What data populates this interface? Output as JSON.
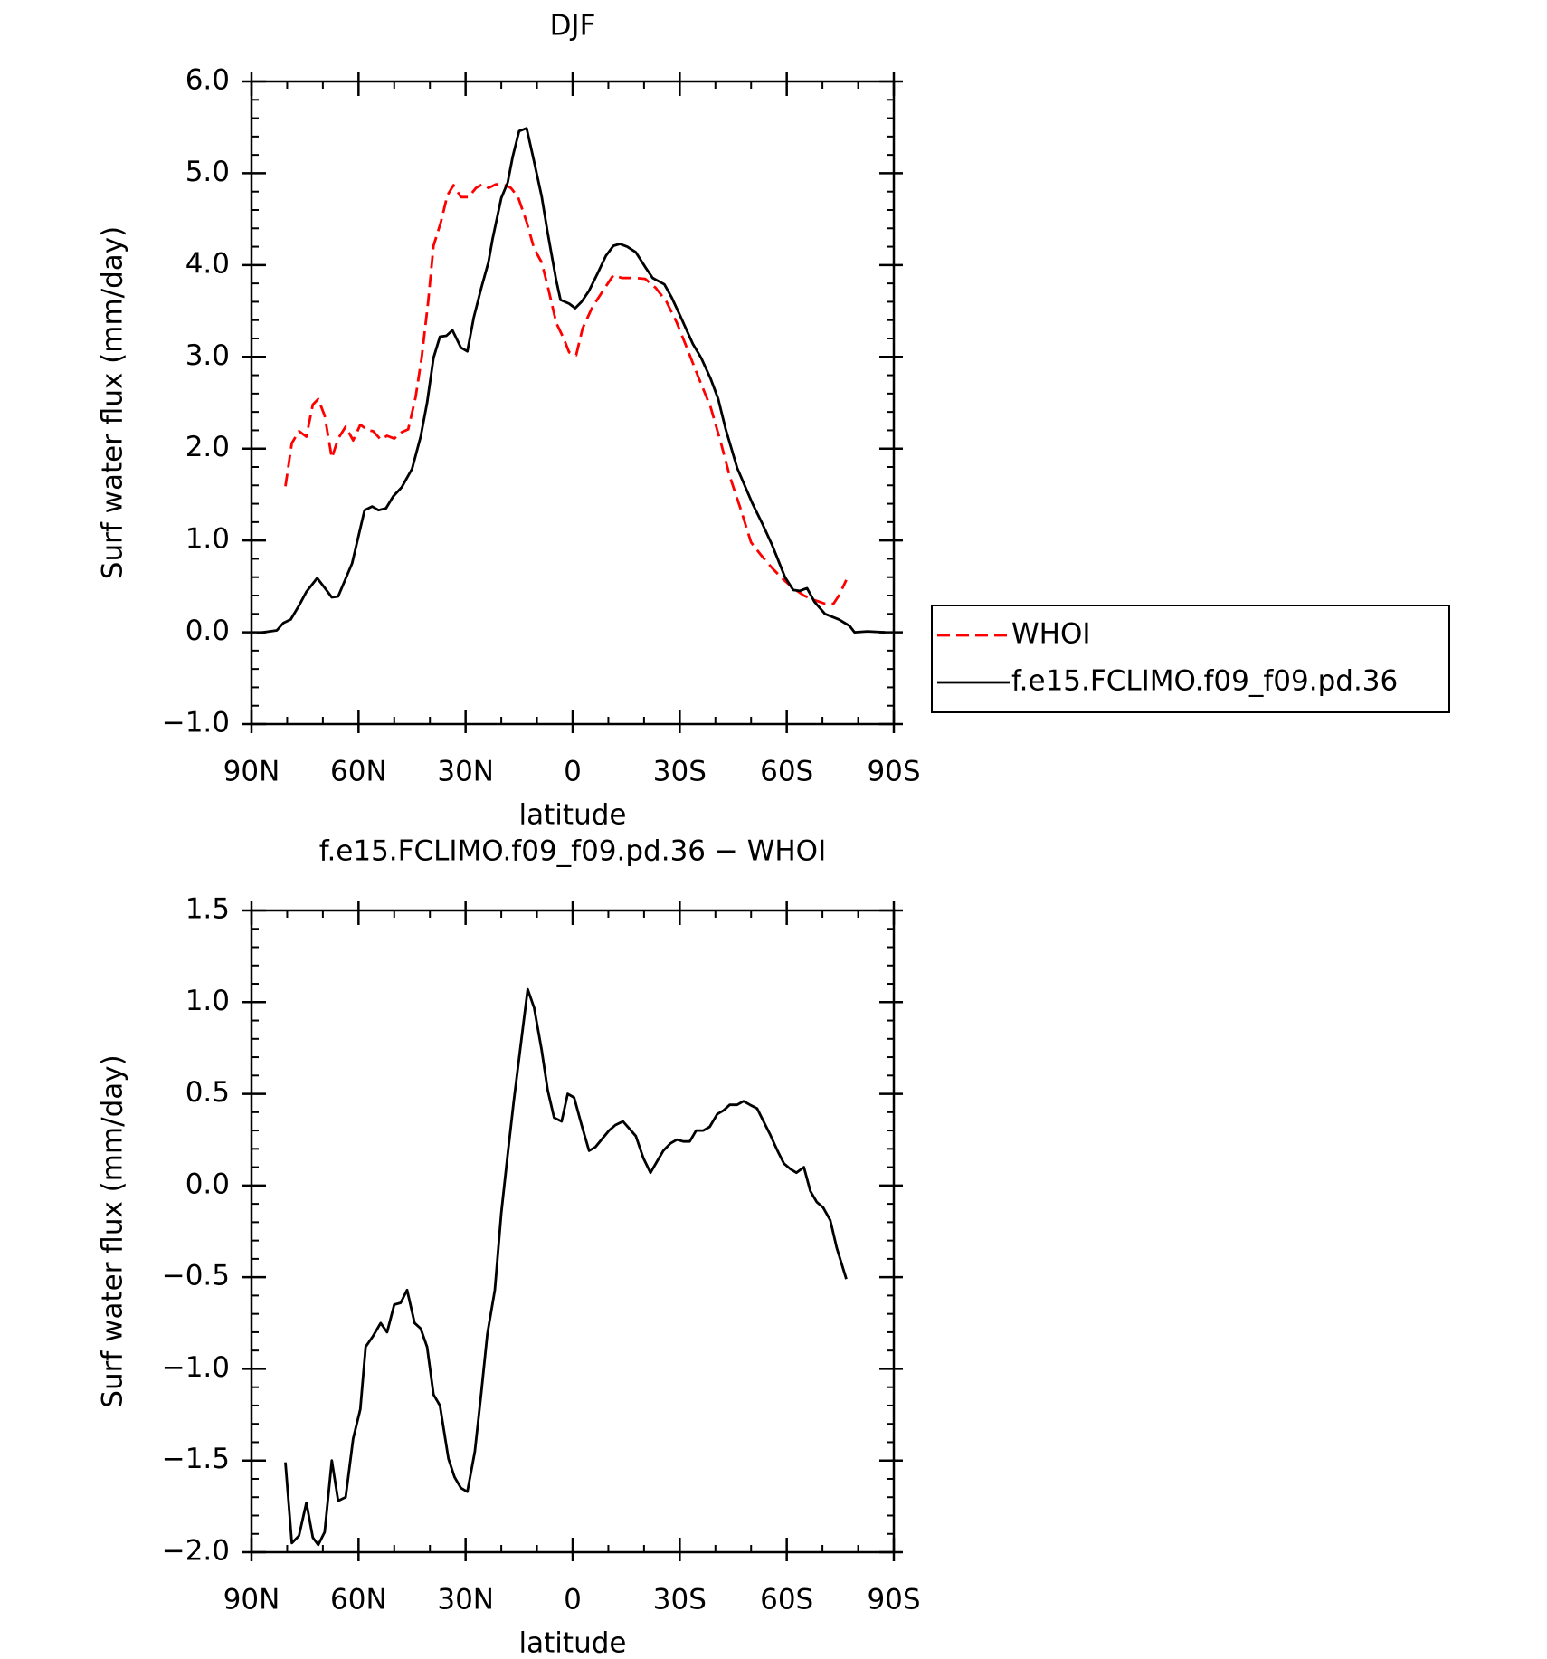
{
  "chart_data": [
    {
      "type": "line",
      "title": "DJF",
      "xlabel": "latitude",
      "ylabel": "Surf water flux (mm/day)",
      "xlim": [
        90,
        -90
      ],
      "ylim": [
        -1,
        6
      ],
      "xticks": [
        {
          "value": 90,
          "label": "90N"
        },
        {
          "value": 60,
          "label": "60N"
        },
        {
          "value": 30,
          "label": "30N"
        },
        0,
        {
          "value": -30,
          "label": "30S"
        },
        {
          "value": -60,
          "label": "60S"
        },
        {
          "value": -90,
          "label": "90S"
        }
      ],
      "yticks": [
        {
          "value": 6,
          "label": "6.0"
        },
        {
          "value": 5,
          "label": "5.0"
        },
        {
          "value": 4,
          "label": "4.0"
        },
        {
          "value": 3,
          "label": "3.0"
        },
        {
          "value": 2,
          "label": "2.0"
        },
        {
          "value": 1,
          "label": "1.0"
        },
        {
          "value": 0,
          "label": "0.0"
        },
        {
          "value": -1,
          "label": "−1.0"
        }
      ],
      "legend": "right",
      "series": [
        {
          "name": "WHOI",
          "color": "#ff0000",
          "style": "dashed",
          "x": [
            80.5,
            78.7,
            76.7,
            74.6,
            72.8,
            71.3,
            69.5,
            67.5,
            65.7,
            63.6,
            61.5,
            59.5,
            57.4,
            55.9,
            53.8,
            52,
            50,
            47.9,
            46.1,
            44,
            42.3,
            40.5,
            39,
            36.9,
            35.1,
            33.4,
            31.3,
            29.2,
            27.1,
            25.3,
            23.6,
            21.5,
            19.4,
            17.3,
            15.3,
            12.9,
            10.8,
            8.7,
            7,
            4.6,
            2.5,
            1,
            -1,
            -2.8,
            -5.5,
            -8.5,
            -11.4,
            -13.8,
            -17.4,
            -20.3,
            -23.3,
            -26.3,
            -29.2,
            -32.2,
            -35.1,
            -38.7,
            -41.7,
            -44,
            -47,
            -50,
            -53,
            -55.9,
            -58.9,
            -61.8,
            -64.8,
            -67.8,
            -70.7,
            -73.1,
            -74.6,
            -76.7
          ],
          "values": [
            1.59,
            2.06,
            2.19,
            2.13,
            2.48,
            2.54,
            2.36,
            1.9,
            2.11,
            2.24,
            2.09,
            2.26,
            2.2,
            2.19,
            2.1,
            2.14,
            2.11,
            2.18,
            2.21,
            2.56,
            2.99,
            3.6,
            4.21,
            4.47,
            4.76,
            4.87,
            4.74,
            4.74,
            4.84,
            4.88,
            4.84,
            4.88,
            4.88,
            4.84,
            4.74,
            4.47,
            4.18,
            4.03,
            3.77,
            3.37,
            3.2,
            3.05,
            3.02,
            3.31,
            3.54,
            3.72,
            3.89,
            3.86,
            3.86,
            3.85,
            3.75,
            3.6,
            3.37,
            3.08,
            2.79,
            2.45,
            2.04,
            1.7,
            1.35,
            0.98,
            0.83,
            0.7,
            0.58,
            0.48,
            0.4,
            0.35,
            0.31,
            0.31,
            0.4,
            0.57
          ]
        },
        {
          "name": "f.e15.FCLIMO.f09_f09.pd.36",
          "color": "#000000",
          "style": "solid",
          "x": [
            88.5,
            82.9,
            81.1,
            79,
            76.7,
            74.6,
            71.6,
            69.2,
            67.5,
            65.7,
            61.8,
            58.3,
            56.2,
            54.4,
            52.3,
            50.3,
            47.9,
            45,
            42.6,
            40.8,
            39,
            37.2,
            35.4,
            33.7,
            31.3,
            29.5,
            27.7,
            25.6,
            23.6,
            22.4,
            20,
            18.2,
            16.8,
            15,
            12.9,
            11.1,
            8.7,
            7,
            4.6,
            3.4,
            1,
            -0.7,
            -2.5,
            -4.6,
            -7,
            -9.3,
            -11.4,
            -13.2,
            -15.3,
            -17.7,
            -20.3,
            -22.4,
            -25.7,
            -27.7,
            -30.1,
            -33.7,
            -36,
            -38.7,
            -40.8,
            -42.9,
            -46.1,
            -50.3,
            -53.2,
            -55.9,
            -59.5,
            -61.8,
            -63.6,
            -65.7,
            -67.8,
            -70.7,
            -74.6,
            -77.6,
            -79,
            -82.6,
            -87.6
          ],
          "values": [
            -0.01,
            0.02,
            0.1,
            0.14,
            0.29,
            0.44,
            0.59,
            0.47,
            0.38,
            0.39,
            0.75,
            1.33,
            1.37,
            1.33,
            1.35,
            1.48,
            1.58,
            1.78,
            2.13,
            2.5,
            2.99,
            3.22,
            3.23,
            3.29,
            3.1,
            3.06,
            3.43,
            3.75,
            4.03,
            4.29,
            4.73,
            4.9,
            5.18,
            5.46,
            5.49,
            5.18,
            4.75,
            4.35,
            3.83,
            3.62,
            3.58,
            3.53,
            3.6,
            3.72,
            3.91,
            4.1,
            4.21,
            4.23,
            4.2,
            4.14,
            3.98,
            3.86,
            3.79,
            3.65,
            3.45,
            3.14,
            2.99,
            2.76,
            2.54,
            2.21,
            1.79,
            1.41,
            1.18,
            0.95,
            0.6,
            0.46,
            0.45,
            0.48,
            0.33,
            0.2,
            0.14,
            0.07,
            0,
            0.01,
            0
          ]
        }
      ]
    },
    {
      "type": "line",
      "title": "f.e15.FCLIMO.f09_f09.pd.36 − WHOI",
      "xlabel": "latitude",
      "ylabel": "Surf water flux (mm/day)",
      "xlim": [
        90,
        -90
      ],
      "ylim": [
        -2,
        1.5
      ],
      "xticks": [
        {
          "value": 90,
          "label": "90N"
        },
        {
          "value": 60,
          "label": "60N"
        },
        {
          "value": 30,
          "label": "30N"
        },
        0,
        {
          "value": -30,
          "label": "30S"
        },
        {
          "value": -60,
          "label": "60S"
        },
        {
          "value": -90,
          "label": "90S"
        }
      ],
      "yticks": [
        1.5,
        {
          "value": 1,
          "label": "1.0"
        },
        0.5,
        {
          "value": 0,
          "label": "0.0"
        },
        {
          "value": -0.5,
          "label": "−0.5"
        },
        {
          "value": -1,
          "label": "−1.0"
        },
        {
          "value": -1.5,
          "label": "−1.5"
        },
        {
          "value": -2,
          "label": "−2.0"
        }
      ],
      "series": [
        {
          "color": "#000000",
          "style": "solid",
          "x": [
            80.5,
            78.7,
            76.7,
            74.6,
            72.8,
            71.3,
            69.5,
            67.5,
            65.7,
            63.6,
            61.5,
            59.5,
            58,
            55.9,
            53.8,
            52,
            50,
            48.2,
            46.4,
            44.3,
            42.6,
            40.8,
            39,
            37.2,
            34.8,
            33.1,
            31.3,
            29.5,
            27.4,
            25.6,
            23.9,
            21.8,
            20,
            18.2,
            16.5,
            14.4,
            12.6,
            10.8,
            8.7,
            7,
            5.2,
            3.1,
            1.4,
            -0.4,
            -2.5,
            -4.6,
            -6.4,
            -8.5,
            -10.2,
            -12,
            -14.1,
            -15.9,
            -17.7,
            -19.8,
            -21.8,
            -23.6,
            -25.4,
            -27.4,
            -29.2,
            -31,
            -32.8,
            -34.6,
            -36.6,
            -38.4,
            -40.5,
            -42.3,
            -44,
            -46.1,
            -47.9,
            -49.7,
            -51.7,
            -53.5,
            -55.3,
            -57.4,
            -59.2,
            -61,
            -62.7,
            -64.8,
            -66.6,
            -68.4,
            -70.2,
            -72.2,
            -74,
            -76.7
          ],
          "values": [
            -1.51,
            -1.95,
            -1.91,
            -1.73,
            -1.92,
            -1.96,
            -1.89,
            -1.5,
            -1.72,
            -1.7,
            -1.38,
            -1.22,
            -0.88,
            -0.82,
            -0.75,
            -0.8,
            -0.65,
            -0.64,
            -0.57,
            -0.75,
            -0.78,
            -0.88,
            -1.14,
            -1.2,
            -1.49,
            -1.59,
            -1.65,
            -1.67,
            -1.45,
            -1.13,
            -0.81,
            -0.57,
            -0.15,
            0.17,
            0.46,
            0.79,
            1.07,
            0.97,
            0.74,
            0.52,
            0.37,
            0.35,
            0.5,
            0.48,
            0.33,
            0.19,
            0.21,
            0.26,
            0.3,
            0.33,
            0.35,
            0.31,
            0.27,
            0.15,
            0.07,
            0.13,
            0.19,
            0.23,
            0.25,
            0.24,
            0.24,
            0.3,
            0.3,
            0.32,
            0.39,
            0.41,
            0.44,
            0.44,
            0.46,
            0.44,
            0.42,
            0.35,
            0.28,
            0.19,
            0.12,
            0.09,
            0.07,
            0.1,
            -0.03,
            -0.09,
            -0.12,
            -0.19,
            -0.34,
            -0.51
          ]
        }
      ]
    }
  ]
}
